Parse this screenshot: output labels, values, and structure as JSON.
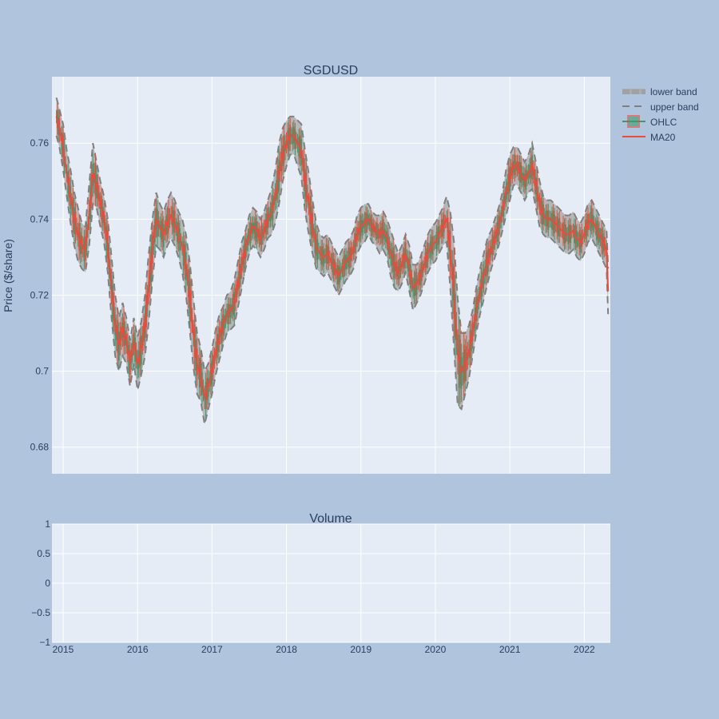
{
  "chart_data": [
    {
      "type": "candlestick",
      "title": "SGDUSD",
      "ylabel": "Price ($/share)",
      "xlabel": "",
      "ylim": [
        0.673,
        0.7775
      ],
      "xlim": [
        2014.85,
        2022.35
      ],
      "grid": true,
      "legend_position": "right",
      "x_ticks": [
        "2015",
        "2016",
        "2017",
        "2018",
        "2019",
        "2020",
        "2021",
        "2022"
      ],
      "x_tick_values": [
        2015,
        2016,
        2017,
        2018,
        2019,
        2020,
        2021,
        2022
      ],
      "y_ticks": [
        "0.68",
        "0.7",
        "0.72",
        "0.74",
        "0.76"
      ],
      "y_tick_values": [
        0.68,
        0.7,
        0.72,
        0.74,
        0.76
      ],
      "series": [
        {
          "name": "lower band",
          "kind": "band-lower"
        },
        {
          "name": "upper band",
          "kind": "band-upper"
        },
        {
          "name": "OHLC",
          "kind": "ohlc"
        },
        {
          "name": "MA20",
          "kind": "line"
        }
      ],
      "x": [
        2014.91,
        2014.95,
        2015.0,
        2015.05,
        2015.1,
        2015.15,
        2015.2,
        2015.25,
        2015.3,
        2015.35,
        2015.4,
        2015.45,
        2015.5,
        2015.55,
        2015.6,
        2015.65,
        2015.7,
        2015.75,
        2015.8,
        2015.85,
        2015.9,
        2015.95,
        2016.0,
        2016.05,
        2016.1,
        2016.15,
        2016.2,
        2016.25,
        2016.3,
        2016.35,
        2016.4,
        2016.45,
        2016.5,
        2016.55,
        2016.6,
        2016.65,
        2016.7,
        2016.75,
        2016.8,
        2016.85,
        2016.9,
        2016.95,
        2017.0,
        2017.05,
        2017.1,
        2017.15,
        2017.2,
        2017.25,
        2017.3,
        2017.35,
        2017.4,
        2017.45,
        2017.5,
        2017.55,
        2017.6,
        2017.65,
        2017.7,
        2017.75,
        2017.8,
        2017.85,
        2017.9,
        2017.95,
        2018.0,
        2018.05,
        2018.1,
        2018.15,
        2018.2,
        2018.25,
        2018.3,
        2018.35,
        2018.4,
        2018.45,
        2018.5,
        2018.55,
        2018.6,
        2018.65,
        2018.7,
        2018.75,
        2018.8,
        2018.85,
        2018.9,
        2018.95,
        2019.0,
        2019.05,
        2019.1,
        2019.15,
        2019.2,
        2019.25,
        2019.3,
        2019.35,
        2019.4,
        2019.45,
        2019.5,
        2019.55,
        2019.6,
        2019.65,
        2019.7,
        2019.75,
        2019.8,
        2019.85,
        2019.9,
        2019.95,
        2020.0,
        2020.05,
        2020.1,
        2020.15,
        2020.2,
        2020.25,
        2020.3,
        2020.35,
        2020.4,
        2020.45,
        2020.5,
        2020.55,
        2020.6,
        2020.65,
        2020.7,
        2020.75,
        2020.8,
        2020.85,
        2020.9,
        2020.95,
        2021.0,
        2021.05,
        2021.1,
        2021.15,
        2021.2,
        2021.25,
        2021.3,
        2021.35,
        2021.4,
        2021.45,
        2021.5,
        2021.55,
        2021.6,
        2021.65,
        2021.7,
        2021.75,
        2021.8,
        2021.85,
        2021.9,
        2021.95,
        2022.0,
        2022.05,
        2022.1,
        2022.15,
        2022.2,
        2022.25,
        2022.3,
        2022.32
      ],
      "ma20": [
        0.767,
        0.764,
        0.759,
        0.752,
        0.746,
        0.74,
        0.736,
        0.733,
        0.732,
        0.741,
        0.752,
        0.749,
        0.744,
        0.74,
        0.733,
        0.722,
        0.712,
        0.707,
        0.711,
        0.708,
        0.702,
        0.708,
        0.702,
        0.706,
        0.712,
        0.722,
        0.732,
        0.74,
        0.738,
        0.736,
        0.739,
        0.741,
        0.739,
        0.736,
        0.733,
        0.728,
        0.72,
        0.71,
        0.702,
        0.699,
        0.693,
        0.696,
        0.7,
        0.705,
        0.709,
        0.712,
        0.715,
        0.716,
        0.718,
        0.723,
        0.728,
        0.732,
        0.736,
        0.738,
        0.737,
        0.735,
        0.737,
        0.74,
        0.742,
        0.746,
        0.752,
        0.757,
        0.76,
        0.762,
        0.762,
        0.76,
        0.758,
        0.75,
        0.744,
        0.738,
        0.733,
        0.731,
        0.73,
        0.731,
        0.729,
        0.727,
        0.725,
        0.727,
        0.729,
        0.73,
        0.732,
        0.736,
        0.738,
        0.739,
        0.74,
        0.738,
        0.737,
        0.736,
        0.737,
        0.735,
        0.731,
        0.728,
        0.726,
        0.728,
        0.731,
        0.727,
        0.722,
        0.723,
        0.725,
        0.728,
        0.731,
        0.733,
        0.734,
        0.736,
        0.738,
        0.74,
        0.732,
        0.72,
        0.705,
        0.7,
        0.702,
        0.705,
        0.71,
        0.716,
        0.721,
        0.725,
        0.729,
        0.732,
        0.735,
        0.738,
        0.742,
        0.747,
        0.751,
        0.754,
        0.754,
        0.752,
        0.75,
        0.752,
        0.754,
        0.749,
        0.744,
        0.741,
        0.74,
        0.74,
        0.739,
        0.738,
        0.737,
        0.736,
        0.736,
        0.737,
        0.735,
        0.734,
        0.736,
        0.739,
        0.74,
        0.738,
        0.736,
        0.734,
        0.732,
        0.721
      ],
      "band_halfwidth": [
        0.005,
        0.005,
        0.006,
        0.006,
        0.007,
        0.007,
        0.007,
        0.006,
        0.006,
        0.008,
        0.008,
        0.006,
        0.006,
        0.006,
        0.007,
        0.008,
        0.008,
        0.007,
        0.007,
        0.006,
        0.006,
        0.006,
        0.007,
        0.007,
        0.008,
        0.009,
        0.008,
        0.007,
        0.006,
        0.006,
        0.006,
        0.006,
        0.006,
        0.006,
        0.007,
        0.008,
        0.009,
        0.009,
        0.008,
        0.007,
        0.007,
        0.006,
        0.006,
        0.006,
        0.006,
        0.005,
        0.005,
        0.005,
        0.006,
        0.006,
        0.006,
        0.005,
        0.005,
        0.005,
        0.005,
        0.005,
        0.005,
        0.005,
        0.006,
        0.007,
        0.008,
        0.007,
        0.006,
        0.005,
        0.005,
        0.006,
        0.007,
        0.008,
        0.008,
        0.007,
        0.006,
        0.005,
        0.005,
        0.005,
        0.005,
        0.005,
        0.005,
        0.005,
        0.005,
        0.005,
        0.005,
        0.005,
        0.005,
        0.005,
        0.004,
        0.004,
        0.004,
        0.005,
        0.005,
        0.005,
        0.006,
        0.006,
        0.005,
        0.005,
        0.005,
        0.006,
        0.006,
        0.005,
        0.005,
        0.005,
        0.005,
        0.005,
        0.005,
        0.005,
        0.005,
        0.006,
        0.01,
        0.014,
        0.014,
        0.01,
        0.008,
        0.007,
        0.006,
        0.006,
        0.006,
        0.006,
        0.006,
        0.005,
        0.005,
        0.005,
        0.005,
        0.006,
        0.006,
        0.005,
        0.005,
        0.005,
        0.005,
        0.005,
        0.006,
        0.006,
        0.006,
        0.005,
        0.005,
        0.005,
        0.005,
        0.005,
        0.005,
        0.005,
        0.005,
        0.005,
        0.005,
        0.005,
        0.005,
        0.005,
        0.005,
        0.005,
        0.005,
        0.005,
        0.005,
        0.006
      ]
    },
    {
      "type": "bar",
      "title": "Volume",
      "xlabel": "",
      "ylabel": "",
      "ylim": [
        -1,
        1
      ],
      "y_ticks": [
        "1",
        "0.5",
        "0",
        "−0.5",
        "−1"
      ],
      "y_tick_values": [
        1,
        0.5,
        0,
        -0.5,
        -1
      ],
      "values": []
    }
  ]
}
